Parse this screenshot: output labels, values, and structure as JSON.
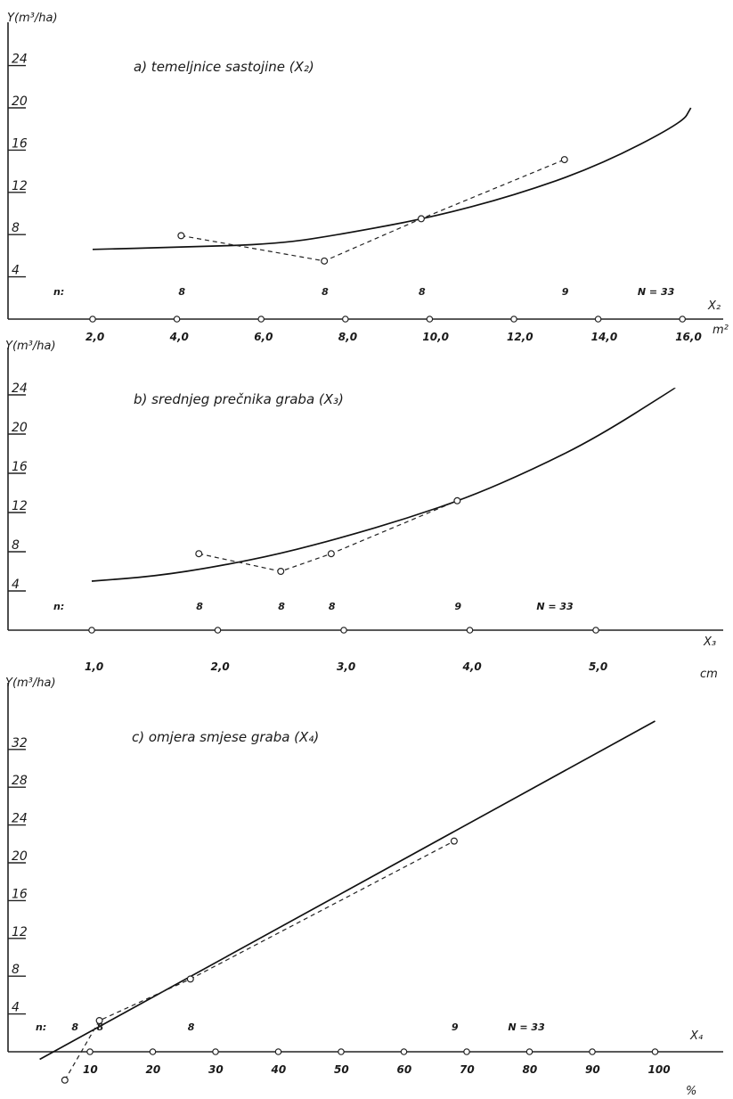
{
  "chart_data": [
    {
      "type": "line",
      "id": "a",
      "title": "a) temeljnice sastojine (X₂)",
      "ylabel": "Y(m³/ha)",
      "xlabel": "X₂",
      "xunit": "m²",
      "xlim": [
        1.0,
        17.5
      ],
      "ylim": [
        0,
        27
      ],
      "yticks": [
        4,
        8,
        12,
        16,
        20,
        24
      ],
      "xticks": [
        2.0,
        4.0,
        6.0,
        8.0,
        10.0,
        12.0,
        14.0,
        16.0
      ],
      "xtick_labels": [
        "2,0",
        "4,0",
        "6,0",
        "8,0",
        "10,0",
        "12,0",
        "14,0",
        "16,0"
      ],
      "series": [
        {
          "style": "solid",
          "x": [
            2.0,
            4.0,
            6.4,
            8.0,
            10.0,
            12.0,
            14.0,
            16.0,
            16.2
          ],
          "y": [
            6.6,
            6.8,
            7.1,
            8.1,
            9.6,
            11.7,
            14.5,
            18.6,
            20.0
          ]
        },
        {
          "style": "dashed-points",
          "x": [
            4.1,
            7.5,
            9.8,
            13.2
          ],
          "y": [
            7.9,
            5.5,
            9.5,
            15.1
          ]
        }
      ],
      "n_labels": {
        "prefix": "n:",
        "items": [
          {
            "x": 4.1,
            "text": "8"
          },
          {
            "x": 7.5,
            "text": "8"
          },
          {
            "x": 9.8,
            "text": "8"
          },
          {
            "x": 13.2,
            "text": "9"
          },
          {
            "x": 15.0,
            "text": "N = 33"
          }
        ]
      }
    },
    {
      "type": "line",
      "id": "b",
      "title": "b) srednjeg prečnika graba (X₃)",
      "ylabel": "Y(m³/ha)",
      "xlabel": "X₃",
      "xunit": "cm",
      "xlim": [
        0.6,
        5.9
      ],
      "ylim": [
        0,
        27
      ],
      "yticks": [
        4,
        8,
        12,
        16,
        20,
        24
      ],
      "xticks": [
        1.0,
        2.0,
        3.0,
        4.0,
        5.0
      ],
      "xtick_labels": [
        "1,0",
        "2,0",
        "3,0",
        "4,0",
        "5,0"
      ],
      "series": [
        {
          "style": "solid",
          "x": [
            1.0,
            1.5,
            2.0,
            2.5,
            3.0,
            3.5,
            4.0,
            4.5,
            5.0,
            5.63
          ],
          "y": [
            5.0,
            5.5,
            6.5,
            7.8,
            9.5,
            11.4,
            13.6,
            16.4,
            19.6,
            24.7
          ]
        },
        {
          "style": "dashed-points",
          "x": [
            1.85,
            2.5,
            2.9,
            3.9
          ],
          "y": [
            7.8,
            6.0,
            7.8,
            13.2
          ]
        }
      ],
      "n_labels": {
        "prefix": "n:",
        "items": [
          {
            "x": 1.85,
            "text": "8"
          },
          {
            "x": 2.5,
            "text": "8"
          },
          {
            "x": 2.9,
            "text": "8"
          },
          {
            "x": 3.9,
            "text": "9"
          },
          {
            "x": 4.55,
            "text": "N = 33"
          }
        ]
      }
    },
    {
      "type": "line",
      "id": "c",
      "title": "c) omjera smjese graba (X₄)",
      "ylabel": "Y(m³/ha)",
      "xlabel": "X₄",
      "xunit": "%",
      "xlim": [
        -3,
        104
      ],
      "ylim": [
        -1,
        37
      ],
      "yticks": [
        4,
        8,
        12,
        16,
        20,
        24,
        28,
        32
      ],
      "xticks": [
        10,
        20,
        30,
        40,
        50,
        60,
        70,
        80,
        90,
        100
      ],
      "xtick_labels": [
        "10",
        "20",
        "30",
        "40",
        "50",
        "60",
        "70",
        "80",
        "90",
        "100"
      ],
      "series": [
        {
          "style": "solid",
          "x": [
            2.0,
            100.0
          ],
          "y": [
            -0.8,
            35.0
          ]
        },
        {
          "style": "dashed-points",
          "x": [
            6.0,
            11.5,
            26.0,
            68.0
          ],
          "y": [
            -3.0,
            3.3,
            7.7,
            22.3
          ]
        }
      ],
      "n_labels": {
        "prefix": "n:",
        "items": [
          {
            "x": 7.5,
            "text": "8"
          },
          {
            "x": 11.5,
            "text": "8"
          },
          {
            "x": 26.0,
            "text": "8"
          },
          {
            "x": 68.0,
            "text": "9"
          },
          {
            "x": 77.0,
            "text": "N = 33"
          }
        ]
      }
    }
  ]
}
